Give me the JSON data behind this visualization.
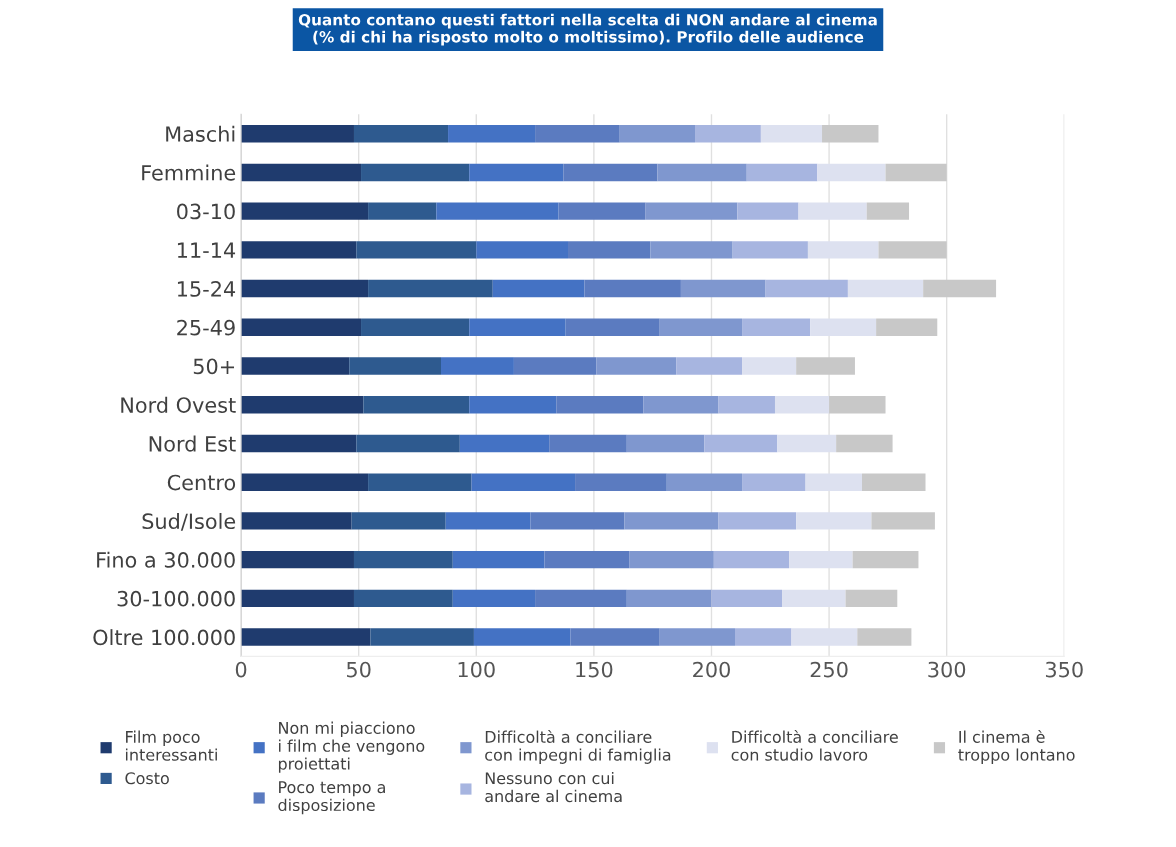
{
  "chart_data": {
    "type": "bar",
    "orientation": "horizontal",
    "stacked": true,
    "title": "Quanto contano questi fattori nella scelta di NON andare al cinema\n(% di chi ha risposto molto o moltissimo). Profilo delle audience",
    "categories": [
      "Maschi",
      "Femmine",
      "03-10",
      "11-14",
      "15-24",
      "25-49",
      "50+",
      "Nord Ovest",
      "Nord Est",
      "Centro",
      "Sud/Isole",
      "Fino a 30.000",
      "30-100.000",
      "Oltre 100.000"
    ],
    "series": [
      {
        "name": "Film poco\ninteressanti",
        "color": "#1f3b6e",
        "values": [
          48,
          51,
          54,
          49,
          54,
          51,
          46,
          52,
          49,
          54,
          47,
          48,
          48,
          55
        ]
      },
      {
        "name": "Costo",
        "color": "#2e5a8f",
        "values": [
          40,
          46,
          29,
          51,
          53,
          46,
          39,
          45,
          44,
          44,
          40,
          42,
          42,
          44
        ]
      },
      {
        "name": "Non mi piacciono\ni film che vengono\nproiettati",
        "color": "#4472c4",
        "values": [
          37,
          40,
          52,
          39,
          39,
          41,
          31,
          37,
          38,
          44,
          36,
          39,
          35,
          41
        ]
      },
      {
        "name": "Poco tempo a\ndisposizione",
        "color": "#5b7bc0",
        "values": [
          36,
          40,
          37,
          35,
          41,
          40,
          35,
          37,
          33,
          39,
          40,
          36,
          39,
          38
        ]
      },
      {
        "name": "Difficoltà a conciliare\ncon impegni di famiglia",
        "color": "#7f97cf",
        "values": [
          32,
          38,
          39,
          35,
          36,
          35,
          34,
          32,
          33,
          32,
          40,
          36,
          36,
          32
        ]
      },
      {
        "name": "Nessuno con cui\nandare al cinema",
        "color": "#a7b5e0",
        "values": [
          28,
          30,
          26,
          32,
          35,
          29,
          28,
          24,
          31,
          27,
          33,
          32,
          30,
          24
        ]
      },
      {
        "name": "Difficoltà a conciliare\ncon studio lavoro",
        "color": "#dde1f0",
        "values": [
          26,
          29,
          29,
          30,
          32,
          28,
          23,
          23,
          25,
          24,
          32,
          27,
          27,
          28
        ]
      },
      {
        "name": "Il cinema è\ntroppo lontano",
        "color": "#c8c8c8",
        "values": [
          24,
          26,
          18,
          29,
          31,
          26,
          25,
          24,
          24,
          27,
          27,
          28,
          22,
          23
        ]
      }
    ],
    "xlim": [
      0,
      350
    ],
    "xticks": [
      0,
      50,
      100,
      150,
      200,
      250,
      300,
      350
    ],
    "grid": "x",
    "legend": "bottom"
  }
}
